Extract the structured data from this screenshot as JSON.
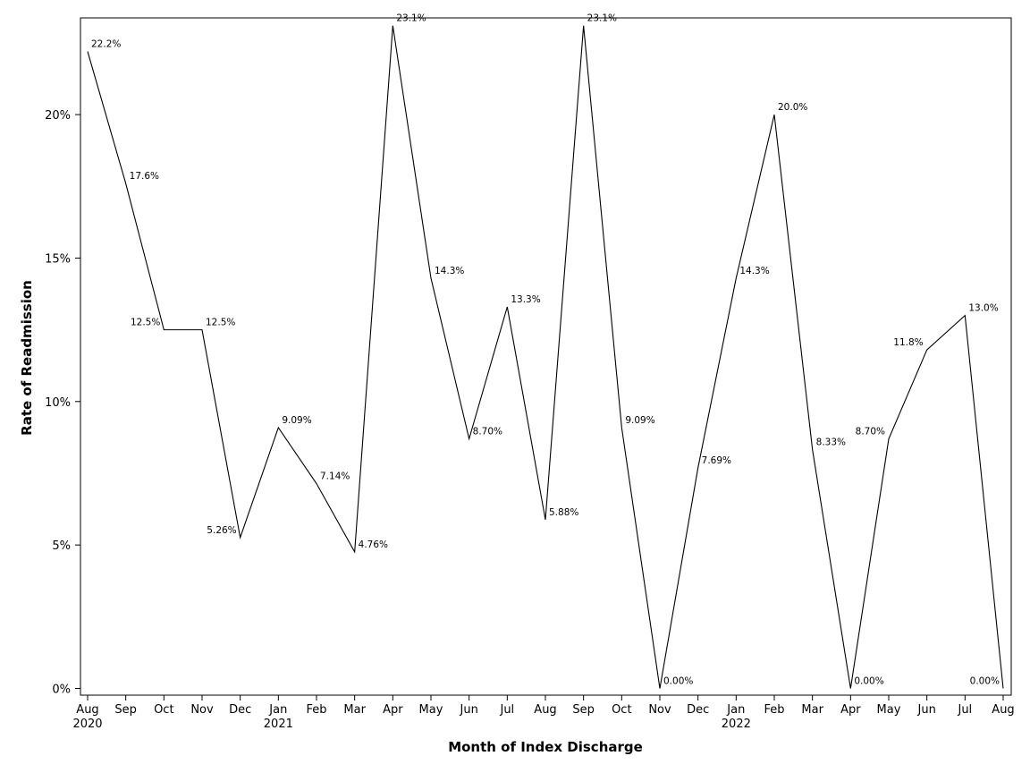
{
  "chart_data": {
    "type": "line",
    "title": "",
    "xlabel": "Month of Index Discharge",
    "ylabel": "Rate of Readmission",
    "ylim": [
      0,
      23.1
    ],
    "y_ticks": [
      {
        "value": 0,
        "label": "0%"
      },
      {
        "value": 5,
        "label": "5%"
      },
      {
        "value": 10,
        "label": "10%"
      },
      {
        "value": 15,
        "label": "15%"
      },
      {
        "value": 20,
        "label": "20%"
      }
    ],
    "grid": false,
    "legend": "none",
    "line_color": "#000000",
    "x": [
      {
        "month": "Aug",
        "year": "2020"
      },
      {
        "month": "Sep",
        "year": ""
      },
      {
        "month": "Oct",
        "year": ""
      },
      {
        "month": "Nov",
        "year": ""
      },
      {
        "month": "Dec",
        "year": ""
      },
      {
        "month": "Jan",
        "year": "2021"
      },
      {
        "month": "Feb",
        "year": ""
      },
      {
        "month": "Mar",
        "year": ""
      },
      {
        "month": "Apr",
        "year": ""
      },
      {
        "month": "May",
        "year": ""
      },
      {
        "month": "Jun",
        "year": ""
      },
      {
        "month": "Jul",
        "year": ""
      },
      {
        "month": "Aug",
        "year": ""
      },
      {
        "month": "Sep",
        "year": ""
      },
      {
        "month": "Oct",
        "year": ""
      },
      {
        "month": "Nov",
        "year": ""
      },
      {
        "month": "Dec",
        "year": ""
      },
      {
        "month": "Jan",
        "year": "2022"
      },
      {
        "month": "Feb",
        "year": ""
      },
      {
        "month": "Mar",
        "year": ""
      },
      {
        "month": "Apr",
        "year": ""
      },
      {
        "month": "May",
        "year": ""
      },
      {
        "month": "Jun",
        "year": ""
      },
      {
        "month": "Jul",
        "year": ""
      },
      {
        "month": "Aug",
        "year": ""
      }
    ],
    "series": [
      {
        "values": [
          22.2,
          17.6,
          12.5,
          12.5,
          5.26,
          9.09,
          7.14,
          4.76,
          23.1,
          14.3,
          8.7,
          13.3,
          5.88,
          23.1,
          9.09,
          0.0,
          7.69,
          14.3,
          20.0,
          8.33,
          0.0,
          8.7,
          11.8,
          13.0,
          0.0
        ],
        "labels": [
          "22.2%",
          "17.6%",
          "12.5%",
          "12.5%",
          "5.26%",
          "9.09%",
          "7.14%",
          "4.76%",
          "23.1%",
          "14.3%",
          "8.70%",
          "13.3%",
          "5.88%",
          "23.1%",
          "9.09%",
          "0.00%",
          "7.69%",
          "14.3%",
          "20.0%",
          "8.33%",
          "0.00%",
          "8.70%",
          "11.8%",
          "13.0%",
          "0.00%"
        ]
      }
    ]
  }
}
